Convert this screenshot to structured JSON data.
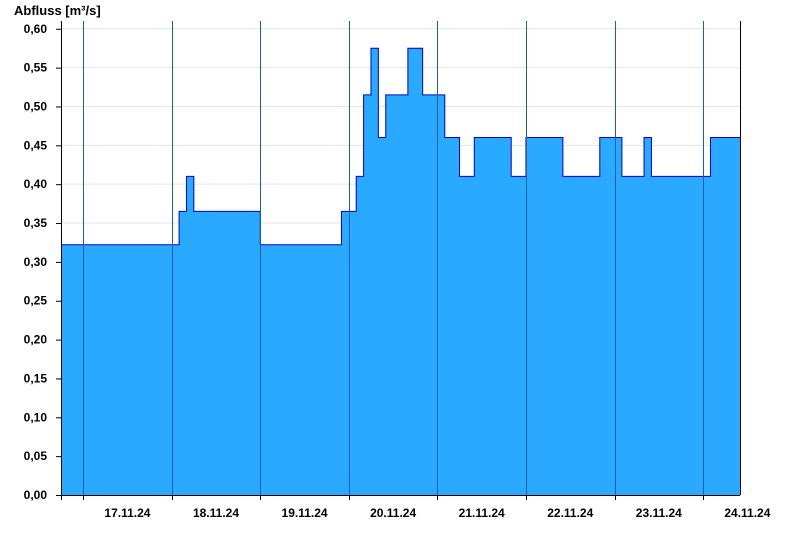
{
  "chart_data": {
    "type": "area",
    "title": "",
    "xlabel": "",
    "ylabel": "Abfluss [m³/s]",
    "ylim": [
      0,
      0.61
    ],
    "yticks": [
      "0,00",
      "0,05",
      "0,10",
      "0,15",
      "0,20",
      "0,25",
      "0,30",
      "0,35",
      "0,40",
      "0,45",
      "0,50",
      "0,55",
      "0,60"
    ],
    "xlim": [
      "16.11.24 18:00",
      "24.11.24 10:00"
    ],
    "xticks": [
      "17.11.24",
      "18.11.24",
      "19.11.24",
      "20.11.24",
      "21.11.24",
      "22.11.24",
      "23.11.24",
      "24.11.24"
    ],
    "day_boundaries": [
      "17.11.24 00:00",
      "18.11.24 00:00",
      "19.11.24 00:00",
      "20.11.24 00:00",
      "21.11.24 00:00",
      "22.11.24 00:00",
      "23.11.24 00:00",
      "24.11.24 00:00"
    ],
    "grid": "horizontal",
    "colors": {
      "fill": "#29a9ff",
      "line": "#0000cc",
      "grid": "#e6e6e6",
      "axis": "#000000"
    },
    "series": [
      {
        "x": [
          "16.11.24 18:00",
          "16.11.24 20:00",
          "16.11.24 22:00",
          "17.11.24 00:00",
          "17.11.24 02:00",
          "17.11.24 04:00",
          "17.11.24 06:00",
          "17.11.24 08:00",
          "17.11.24 10:00",
          "17.11.24 12:00",
          "17.11.24 14:00",
          "17.11.24 16:00",
          "17.11.24 18:00",
          "17.11.24 20:00",
          "17.11.24 22:00",
          "18.11.24 00:00",
          "18.11.24 02:00",
          "18.11.24 04:00",
          "18.11.24 06:00",
          "18.11.24 08:00",
          "18.11.24 10:00",
          "18.11.24 12:00",
          "18.11.24 14:00",
          "18.11.24 16:00",
          "18.11.24 18:00",
          "18.11.24 20:00",
          "18.11.24 22:00",
          "19.11.24 00:00",
          "19.11.24 02:00",
          "19.11.24 04:00",
          "19.11.24 06:00",
          "19.11.24 08:00",
          "19.11.24 10:00",
          "19.11.24 12:00",
          "19.11.24 14:00",
          "19.11.24 16:00",
          "19.11.24 18:00",
          "19.11.24 20:00",
          "19.11.24 22:00",
          "20.11.24 00:00",
          "20.11.24 02:00",
          "20.11.24 04:00",
          "20.11.24 06:00",
          "20.11.24 08:00",
          "20.11.24 10:00",
          "20.11.24 12:00",
          "20.11.24 14:00",
          "20.11.24 16:00",
          "20.11.24 18:00",
          "20.11.24 20:00",
          "20.11.24 22:00",
          "21.11.24 00:00",
          "21.11.24 02:00",
          "21.11.24 04:00",
          "21.11.24 06:00",
          "21.11.24 08:00",
          "21.11.24 10:00",
          "21.11.24 12:00",
          "21.11.24 14:00",
          "21.11.24 16:00",
          "21.11.24 18:00",
          "21.11.24 20:00",
          "21.11.24 22:00",
          "22.11.24 00:00",
          "22.11.24 02:00",
          "22.11.24 04:00",
          "22.11.24 06:00",
          "22.11.24 08:00",
          "22.11.24 10:00",
          "22.11.24 12:00",
          "22.11.24 14:00",
          "22.11.24 16:00",
          "22.11.24 18:00",
          "22.11.24 20:00",
          "22.11.24 22:00",
          "23.11.24 00:00",
          "23.11.24 02:00",
          "23.11.24 04:00",
          "23.11.24 06:00",
          "23.11.24 08:00",
          "23.11.24 10:00",
          "23.11.24 12:00",
          "23.11.24 14:00",
          "23.11.24 16:00",
          "23.11.24 18:00",
          "23.11.24 20:00",
          "23.11.24 22:00",
          "24.11.24 00:00",
          "24.11.24 02:00",
          "24.11.24 04:00",
          "24.11.24 06:00",
          "24.11.24 08:00",
          "24.11.24 10:00"
        ],
        "values": [
          0.322,
          0.322,
          0.322,
          0.322,
          0.322,
          0.322,
          0.322,
          0.322,
          0.322,
          0.322,
          0.322,
          0.322,
          0.322,
          0.322,
          0.322,
          0.322,
          0.365,
          0.41,
          0.365,
          0.365,
          0.365,
          0.365,
          0.365,
          0.365,
          0.365,
          0.365,
          0.365,
          0.322,
          0.322,
          0.322,
          0.322,
          0.322,
          0.322,
          0.322,
          0.322,
          0.322,
          0.322,
          0.322,
          0.365,
          0.365,
          0.41,
          0.515,
          0.575,
          0.46,
          0.515,
          0.515,
          0.515,
          0.575,
          0.575,
          0.515,
          0.515,
          0.515,
          0.46,
          0.46,
          0.41,
          0.41,
          0.46,
          0.46,
          0.46,
          0.46,
          0.46,
          0.41,
          0.41,
          0.46,
          0.46,
          0.46,
          0.46,
          0.46,
          0.41,
          0.41,
          0.41,
          0.41,
          0.41,
          0.46,
          0.46,
          0.46,
          0.41,
          0.41,
          0.41,
          0.46,
          0.41,
          0.41,
          0.41,
          0.41,
          0.41,
          0.41,
          0.41,
          0.41,
          0.46,
          0.46,
          0.46,
          0.46,
          0.46
        ]
      }
    ]
  }
}
